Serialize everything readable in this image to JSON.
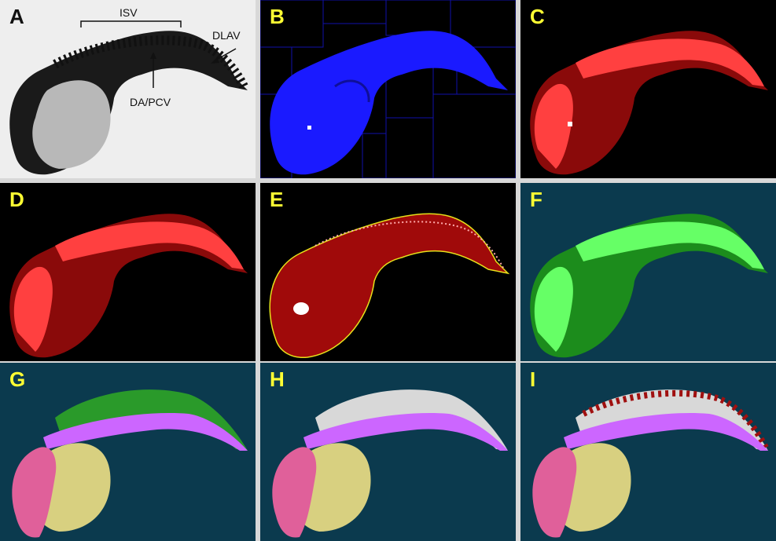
{
  "panels": [
    {
      "label": "A",
      "label_color": "#111111",
      "background": "#eeeeee"
    },
    {
      "label": "B",
      "label_color": "#ffff33",
      "background": "#000000"
    },
    {
      "label": "C",
      "label_color": "#ffff33",
      "background": "#000000"
    },
    {
      "label": "D",
      "label_color": "#ffff33",
      "background": "#000000"
    },
    {
      "label": "E",
      "label_color": "#ffff33",
      "background": "#000000"
    },
    {
      "label": "F",
      "label_color": "#ffff33",
      "background": "#0b3a4e"
    },
    {
      "label": "G",
      "label_color": "#ffff33",
      "background": "#0b3a4e"
    },
    {
      "label": "H",
      "label_color": "#ffff33",
      "background": "#0b3a4e"
    },
    {
      "label": "I",
      "label_color": "#ffff33",
      "background": "#0b3a4e"
    }
  ],
  "annotations": {
    "isv": "ISV",
    "dlav": "DLAV",
    "da_pcv": "DA/PCV"
  },
  "colors": {
    "blue_mask": "#1a1aff",
    "red_dark": "#8a0a0a",
    "red_bright": "#ff4040",
    "green_dark": "#1c8c1c",
    "green_bright": "#66ff66",
    "violet": "#cc66ff",
    "yolk": "#d8d080",
    "heart_pink": "#e0609a",
    "trunk_green": "#2a9a2a",
    "vessel_white": "#d8d8d8",
    "vessel_red": "#a01010",
    "contour_yellow": "#e6e01a",
    "grid_blue": "#1010aa"
  }
}
